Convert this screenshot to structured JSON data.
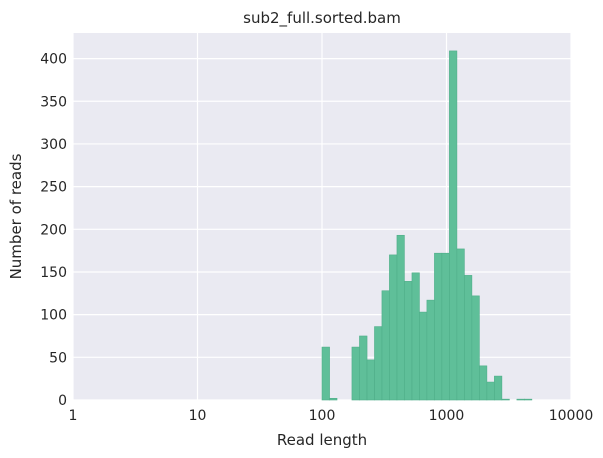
{
  "chart_data": {
    "type": "bar",
    "title": "sub2_full.sorted.bam",
    "xlabel": "Read length",
    "ylabel": "Number of reads",
    "x_scale": "log",
    "xlim": [
      1,
      10000
    ],
    "ylim": [
      0,
      430
    ],
    "x_ticks": [
      "1",
      "10",
      "100",
      "1000",
      "10000"
    ],
    "y_ticks": [
      "0",
      "50",
      "100",
      "150",
      "200",
      "250",
      "300",
      "350",
      "400"
    ],
    "grid": true,
    "colors": {
      "bar": "#5fbf99",
      "bar_edge": "#4fae89",
      "background": "#eaeaf2",
      "grid": "#ffffff"
    },
    "bins": [
      {
        "x0": 100,
        "x1": 115,
        "count": 62
      },
      {
        "x0": 115,
        "x1": 132,
        "count": 2
      },
      {
        "x0": 132,
        "x1": 152,
        "count": 0
      },
      {
        "x0": 152,
        "x1": 174,
        "count": 0
      },
      {
        "x0": 174,
        "x1": 200,
        "count": 62
      },
      {
        "x0": 200,
        "x1": 230,
        "count": 75
      },
      {
        "x0": 230,
        "x1": 264,
        "count": 47
      },
      {
        "x0": 264,
        "x1": 303,
        "count": 86
      },
      {
        "x0": 303,
        "x1": 348,
        "count": 128
      },
      {
        "x0": 348,
        "x1": 400,
        "count": 170
      },
      {
        "x0": 400,
        "x1": 459,
        "count": 193
      },
      {
        "x0": 459,
        "x1": 528,
        "count": 139
      },
      {
        "x0": 528,
        "x1": 606,
        "count": 149
      },
      {
        "x0": 606,
        "x1": 696,
        "count": 103
      },
      {
        "x0": 696,
        "x1": 800,
        "count": 117
      },
      {
        "x0": 800,
        "x1": 918,
        "count": 172
      },
      {
        "x0": 918,
        "x1": 1055,
        "count": 172
      },
      {
        "x0": 1055,
        "x1": 1212,
        "count": 409
      },
      {
        "x0": 1212,
        "x1": 1392,
        "count": 177
      },
      {
        "x0": 1392,
        "x1": 1599,
        "count": 146
      },
      {
        "x0": 1599,
        "x1": 1837,
        "count": 122
      },
      {
        "x0": 1837,
        "x1": 2110,
        "count": 40
      },
      {
        "x0": 2110,
        "x1": 2424,
        "count": 21
      },
      {
        "x0": 2424,
        "x1": 2785,
        "count": 28
      },
      {
        "x0": 2785,
        "x1": 3199,
        "count": 1
      },
      {
        "x0": 3199,
        "x1": 3675,
        "count": 0
      },
      {
        "x0": 3675,
        "x1": 4221,
        "count": 1
      },
      {
        "x0": 4221,
        "x1": 4849,
        "count": 1
      }
    ]
  }
}
